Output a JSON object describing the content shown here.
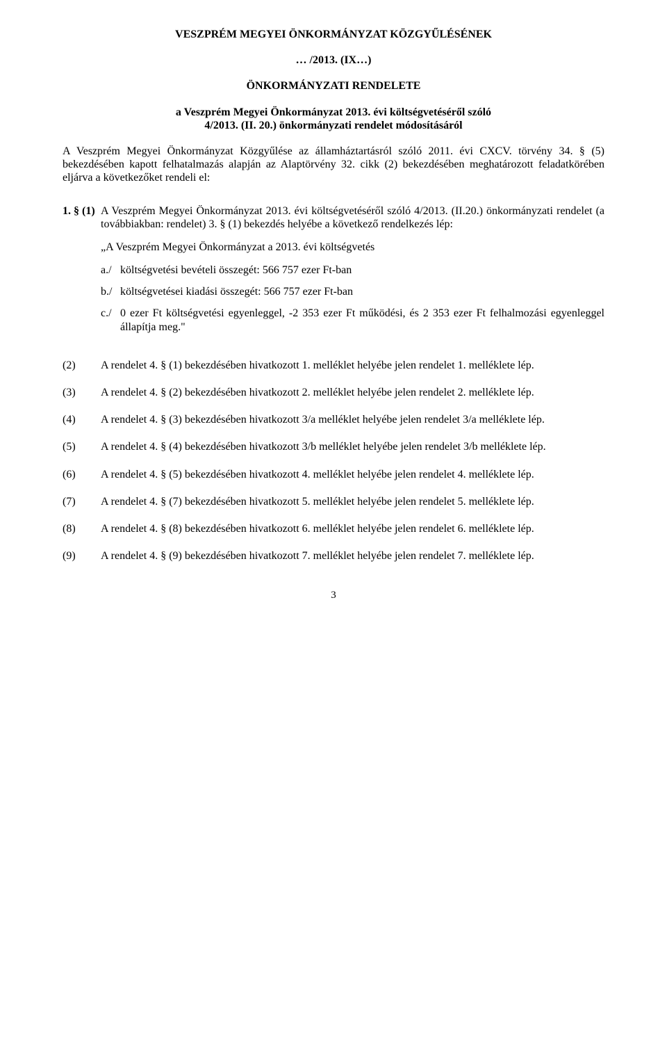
{
  "header": {
    "line1": "VESZPRÉM MEGYEI ÖNKORMÁNYZAT KÖZGYŰLÉSÉNEK",
    "line2": "… /2013. (IX…)",
    "line3": "ÖNKORMÁNYZATI RENDELETE",
    "subject1": "a Veszprém Megyei Önkormányzat 2013. évi költségvetéséről szóló",
    "subject2": "4/2013. (II. 20.) önkormányzati rendelet módosításáról"
  },
  "preamble": "A Veszprém Megyei Önkormányzat Közgyűlése az államháztartásról szóló 2011. évi CXCV. törvény 34. § (5) bekezdésében kapott felhatalmazás alapján az Alaptörvény 32. cikk (2) bekezdésében meghatározott feladatkörében eljárva a következőket rendeli el:",
  "section1": {
    "label": "1. § (1)",
    "body": "A Veszprém Megyei Önkormányzat 2013. évi költségvetéséről szóló 4/2013. (II.20.) önkormányzati rendelet (a továbbiakban: rendelet) 3. § (1) bekezdés helyébe a következő rendelkezés lép:",
    "quote_intro": "„A Veszprém Megyei Önkormányzat a 2013. évi költségvetés",
    "letters": [
      {
        "label": "a./",
        "text": "költségvetési bevételi összegét: 566 757 ezer Ft-ban"
      },
      {
        "label": "b./",
        "text": "költségvetései kiadási összegét: 566 757 ezer Ft-ban"
      },
      {
        "label": "c./",
        "text": "0 ezer Ft költségvetési egyenleggel, -2 353 ezer Ft működési, és 2 353 ezer Ft felhalmozási egyenleggel állapítja meg.\""
      }
    ]
  },
  "subsections": [
    {
      "label": "(2)",
      "text": "A rendelet 4. § (1) bekezdésében hivatkozott 1. melléklet helyébe jelen rendelet 1. melléklete lép."
    },
    {
      "label": "(3)",
      "text": "A rendelet 4. § (2) bekezdésében hivatkozott 2. melléklet helyébe jelen rendelet 2. melléklete lép."
    },
    {
      "label": "(4)",
      "text": "A rendelet 4. § (3) bekezdésében hivatkozott 3/a melléklet helyébe jelen rendelet 3/a melléklete lép."
    },
    {
      "label": "(5)",
      "text": "A rendelet 4. § (4) bekezdésében hivatkozott 3/b melléklet helyébe jelen rendelet 3/b melléklete lép."
    },
    {
      "label": "(6)",
      "text": "A rendelet 4. § (5) bekezdésében hivatkozott 4. melléklet helyébe jelen rendelet 4. melléklete lép."
    },
    {
      "label": "(7)",
      "text": "A rendelet 4. § (7) bekezdésében hivatkozott 5. melléklet helyébe jelen rendelet 5. melléklete lép."
    },
    {
      "label": "(8)",
      "text": "A rendelet 4. § (8) bekezdésében hivatkozott 6. melléklet helyébe jelen rendelet 6. melléklete lép."
    },
    {
      "label": "(9)",
      "text": "A rendelet 4. § (9) bekezdésében hivatkozott 7. melléklet helyébe jelen rendelet 7. melléklete lép."
    }
  ],
  "page_number": "3"
}
